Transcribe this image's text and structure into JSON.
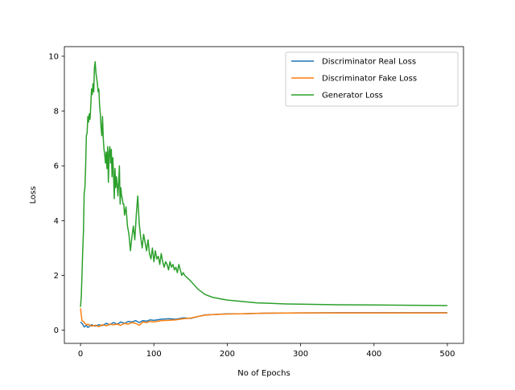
{
  "chart_data": {
    "type": "line",
    "title": "",
    "xlabel": "No of Epochs",
    "ylabel": "Loss",
    "xlim": [
      -22,
      522
    ],
    "ylim": [
      -0.48,
      10.35
    ],
    "xticks": [
      0,
      100,
      200,
      300,
      400,
      500
    ],
    "yticks": [
      0,
      2,
      4,
      6,
      8,
      10
    ],
    "grid": false,
    "legend_position": "top-right",
    "series": [
      {
        "name": "Discriminator Real Loss",
        "color": "#1f77b4",
        "x": [
          0,
          3,
          5,
          8,
          10,
          15,
          20,
          25,
          30,
          35,
          40,
          45,
          50,
          55,
          60,
          65,
          70,
          75,
          80,
          85,
          90,
          95,
          100,
          110,
          120,
          130,
          140,
          150,
          160,
          170,
          180,
          200,
          220,
          250,
          300,
          350,
          400,
          450,
          500
        ],
        "y": [
          0.3,
          0.22,
          0.12,
          0.18,
          0.1,
          0.2,
          0.15,
          0.2,
          0.17,
          0.25,
          0.2,
          0.28,
          0.22,
          0.3,
          0.25,
          0.32,
          0.3,
          0.35,
          0.28,
          0.35,
          0.33,
          0.38,
          0.36,
          0.4,
          0.42,
          0.4,
          0.45,
          0.43,
          0.5,
          0.56,
          0.57,
          0.6,
          0.6,
          0.62,
          0.63,
          0.64,
          0.64,
          0.64,
          0.64
        ]
      },
      {
        "name": "Discriminator Fake Loss",
        "color": "#ff7f0e",
        "x": [
          0,
          2,
          4,
          6,
          8,
          10,
          15,
          20,
          25,
          30,
          35,
          40,
          45,
          50,
          55,
          60,
          65,
          70,
          75,
          80,
          85,
          90,
          95,
          100,
          110,
          120,
          130,
          140,
          150,
          160,
          170,
          180,
          200,
          220,
          250,
          300,
          350,
          400,
          450,
          500
        ],
        "y": [
          0.8,
          0.35,
          0.32,
          0.25,
          0.2,
          0.22,
          0.15,
          0.18,
          0.13,
          0.2,
          0.16,
          0.22,
          0.2,
          0.22,
          0.18,
          0.25,
          0.22,
          0.28,
          0.25,
          0.18,
          0.3,
          0.28,
          0.32,
          0.3,
          0.35,
          0.36,
          0.38,
          0.42,
          0.44,
          0.5,
          0.55,
          0.57,
          0.59,
          0.6,
          0.62,
          0.63,
          0.63,
          0.63,
          0.63,
          0.63
        ]
      },
      {
        "name": "Generator Loss",
        "color": "#2ca02c",
        "x": [
          0,
          1,
          2,
          3,
          4,
          5,
          6,
          7,
          8,
          9,
          10,
          11,
          12,
          13,
          14,
          15,
          16,
          17,
          18,
          19,
          20,
          21,
          22,
          23,
          24,
          25,
          26,
          27,
          28,
          29,
          30,
          31,
          32,
          33,
          34,
          35,
          36,
          37,
          38,
          39,
          40,
          41,
          42,
          43,
          44,
          45,
          46,
          47,
          48,
          49,
          50,
          51,
          52,
          53,
          54,
          55,
          56,
          57,
          58,
          59,
          60,
          62,
          64,
          66,
          68,
          70,
          72,
          74,
          76,
          78,
          80,
          82,
          84,
          86,
          88,
          90,
          92,
          94,
          96,
          98,
          100,
          102,
          104,
          106,
          108,
          110,
          112,
          114,
          116,
          118,
          120,
          122,
          124,
          126,
          128,
          130,
          132,
          134,
          136,
          138,
          140,
          142,
          144,
          146,
          148,
          150,
          155,
          160,
          165,
          170,
          180,
          190,
          200,
          220,
          240,
          260,
          280,
          300,
          350,
          400,
          450,
          500
        ],
        "y": [
          0.85,
          1.2,
          2.0,
          2.9,
          3.6,
          5.0,
          5.2,
          6.0,
          7.1,
          7.2,
          7.8,
          7.6,
          7.9,
          7.7,
          8.2,
          8.8,
          8.6,
          9.0,
          8.7,
          9.6,
          9.8,
          9.4,
          9.2,
          9.0,
          8.7,
          8.8,
          8.2,
          7.9,
          7.4,
          7.1,
          7.8,
          7.0,
          6.6,
          6.4,
          6.1,
          6.5,
          5.9,
          6.7,
          5.4,
          6.5,
          6.7,
          6.1,
          6.6,
          5.6,
          6.3,
          5.7,
          4.8,
          5.9,
          5.2,
          5.6,
          5.3,
          4.9,
          5.4,
          6.0,
          4.6,
          5.2,
          4.9,
          4.8,
          4.6,
          4.6,
          4.2,
          4.5,
          3.8,
          3.5,
          2.9,
          3.4,
          3.8,
          3.3,
          4.2,
          4.9,
          3.9,
          3.4,
          3.0,
          3.5,
          3.2,
          2.9,
          3.3,
          2.8,
          2.6,
          3.0,
          2.5,
          2.9,
          2.6,
          2.7,
          2.4,
          2.8,
          2.5,
          2.3,
          2.5,
          2.4,
          2.2,
          2.5,
          2.3,
          2.4,
          2.2,
          2.3,
          2.1,
          2.4,
          2.2,
          2.0,
          2.1,
          2.0,
          1.95,
          1.9,
          1.85,
          1.8,
          1.65,
          1.5,
          1.4,
          1.3,
          1.2,
          1.15,
          1.1,
          1.05,
          1.0,
          0.98,
          0.96,
          0.95,
          0.93,
          0.92,
          0.91,
          0.9
        ]
      }
    ]
  }
}
